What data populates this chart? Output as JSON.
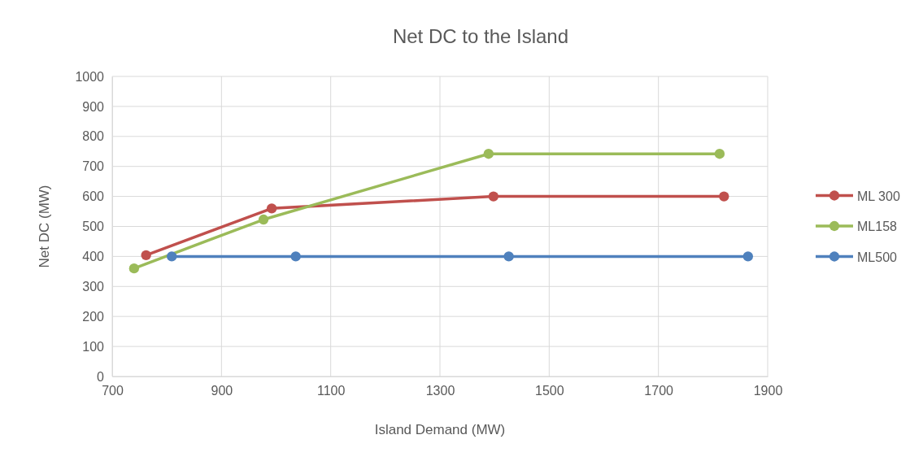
{
  "chart_data": {
    "type": "line",
    "title": "Net DC to the Island",
    "xlabel": "Island Demand (MW)",
    "ylabel": "Net DC  (MW)",
    "xlim": [
      700,
      1900
    ],
    "xticks": [
      700,
      900,
      1100,
      1300,
      1500,
      1700,
      1900
    ],
    "ylim": [
      0,
      1000
    ],
    "yticks": [
      0,
      100,
      200,
      300,
      400,
      500,
      600,
      700,
      800,
      900,
      1000
    ],
    "grid": true,
    "legend": "right",
    "marker": "circle",
    "line_style": "solid",
    "series": [
      {
        "name": "ML 300",
        "color": "#c0504d",
        "x": [
          762,
          992,
          1398,
          1820
        ],
        "values": [
          404,
          560,
          600,
          600
        ]
      },
      {
        "name": "ML158",
        "color": "#9bbb59",
        "x": [
          740,
          977,
          1389,
          1812
        ],
        "values": [
          360,
          523,
          742,
          742
        ]
      },
      {
        "name": "ML500",
        "color": "#4f81bd",
        "x": [
          809,
          1036,
          1426,
          1864
        ],
        "values": [
          400,
          400,
          400,
          400
        ]
      }
    ]
  }
}
